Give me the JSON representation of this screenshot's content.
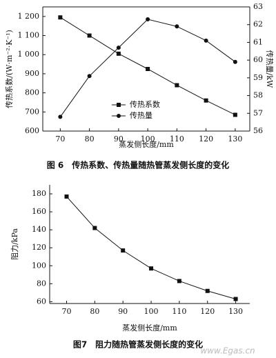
{
  "chart_data": [
    {
      "type": "line",
      "caption": "图 6　传热系数、传热量随热管蒸发侧长度的变化",
      "x_label": "蒸发侧长度/mm",
      "y_label": "传热系数/(W·m⁻²·K⁻¹)",
      "y2_label": "传热量/kW",
      "x": [
        70,
        80,
        90,
        100,
        110,
        120,
        130
      ],
      "xlim": [
        64,
        135
      ],
      "xticks": [
        70,
        80,
        90,
        100,
        110,
        120,
        130
      ],
      "ylim": [
        600,
        1250
      ],
      "yticks": [
        600,
        700,
        800,
        900,
        {
          "value": 1000,
          "label": "1 000"
        },
        {
          "value": 1100,
          "label": "1 100"
        },
        {
          "value": 1200,
          "label": "1 200"
        }
      ],
      "y2lim": [
        56,
        63
      ],
      "y2ticks": [
        56,
        57,
        58,
        59,
        60,
        61,
        62,
        63
      ],
      "legend": "center",
      "box": true,
      "series": [
        {
          "name": "传热系数",
          "color": "#111111",
          "marker": "square",
          "values": [
            1195,
            1100,
            1005,
            925,
            840,
            760,
            685
          ]
        },
        {
          "name": "传热量",
          "color": "#111111",
          "marker": "circle",
          "axis": "y2",
          "values": [
            56.8,
            59.1,
            60.7,
            62.3,
            61.9,
            61.1,
            59.9
          ]
        }
      ]
    },
    {
      "type": "line",
      "caption": "图7　阻力随热管蒸发侧长度的变化",
      "x_label": "蒸发侧长度/mm",
      "y_label": "阻力/kPa",
      "x": [
        70,
        80,
        90,
        100,
        110,
        120,
        130
      ],
      "xlim": [
        64,
        135
      ],
      "xticks": [
        70,
        80,
        90,
        100,
        110,
        120,
        130
      ],
      "ylim": [
        58,
        190
      ],
      "yticks": [
        60,
        80,
        100,
        120,
        140,
        160,
        180
      ],
      "box": false,
      "series": [
        {
          "color": "#111111",
          "marker": "square",
          "values": [
            177,
            142,
            117,
            97,
            83,
            72,
            63
          ]
        }
      ]
    }
  ],
  "watermark": "www.Egas.cn"
}
